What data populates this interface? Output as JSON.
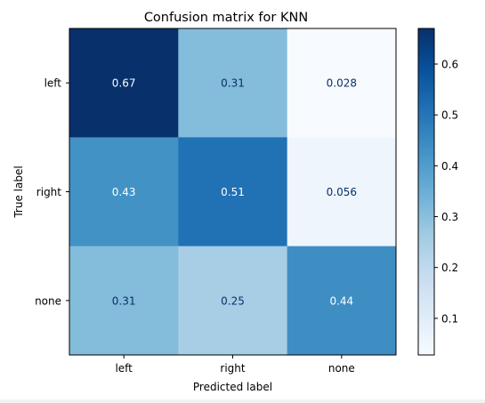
{
  "chart_data": {
    "type": "heatmap",
    "title": "Confusion matrix for KNN",
    "xlabel": "Predicted label",
    "ylabel": "True label",
    "x_categories": [
      "left",
      "right",
      "none"
    ],
    "y_categories": [
      "left",
      "right",
      "none"
    ],
    "values": [
      [
        0.67,
        0.31,
        0.028
      ],
      [
        0.43,
        0.51,
        0.056
      ],
      [
        0.31,
        0.25,
        0.44
      ]
    ],
    "labels": [
      [
        "0.67",
        "0.31",
        "0.028"
      ],
      [
        "0.43",
        "0.51",
        "0.056"
      ],
      [
        "0.31",
        "0.25",
        "0.44"
      ]
    ],
    "colormap": "Blues",
    "colorbar": {
      "range": [
        0.028,
        0.67
      ],
      "ticks": [
        0.1,
        0.2,
        0.3,
        0.4,
        0.5,
        0.6
      ],
      "tick_labels": [
        "0.1",
        "0.2",
        "0.3",
        "0.4",
        "0.5",
        "0.6"
      ]
    },
    "text_colors": {
      "dark_text": "#08306b",
      "light_text": "#ffffff"
    }
  }
}
